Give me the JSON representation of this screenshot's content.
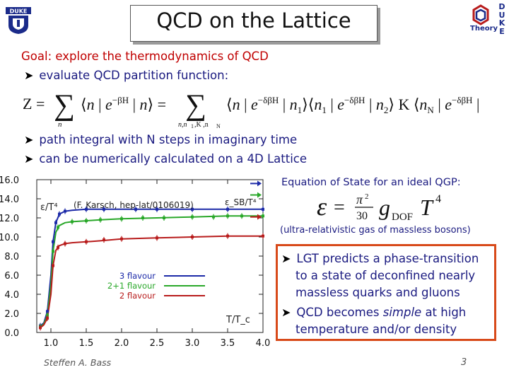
{
  "slide": {
    "title": "QCD on the Lattice",
    "goal": "Goal: explore the thermodynamics of QCD",
    "bullet1": "evaluate QCD partition function:",
    "bullet2": "path integral with N steps in imaginary time",
    "bullet3": "can be numerically calculated on a 4D Lattice",
    "eos_title": "Equation of State for an ideal QGP:",
    "eos_caption": "(ultra-relativistic gas of massless bosons)",
    "box_item1": "LGT predicts a phase-transition to a state of deconfined nearly massless quarks and gluons",
    "box_item2_pre": "QCD becomes ",
    "box_item2_em": "simple",
    "box_item2_post": " at high temperature and/or density",
    "footer_name": "Steffen A. Bass",
    "page_number": "3",
    "logo_text": "Theory",
    "logo_letters": [
      "D",
      "U",
      "K",
      "E"
    ],
    "university_logo": "DUKE"
  },
  "chart_data": {
    "type": "line",
    "annotation": "(F. Karsch, hep-lat/0106019)",
    "ylabel": "ε/T⁴",
    "sb_label": "ε_SB/T⁴",
    "xlabel": "T/T_c",
    "xlim": [
      0.8,
      4.0
    ],
    "ylim": [
      0.0,
      16.0
    ],
    "x_ticks": [
      "1.0",
      "1.5",
      "2.0",
      "2.5",
      "3.0",
      "3.5",
      "4.0"
    ],
    "y_ticks": [
      "0.0",
      "2.0",
      "4.0",
      "6.0",
      "8.0",
      "10.0",
      "12.0",
      "14.0",
      "16.0"
    ],
    "series": [
      {
        "name": "3 flavour",
        "color": "#1c2aa8",
        "sb": 15.6,
        "x": [
          0.85,
          0.9,
          0.95,
          1.0,
          1.03,
          1.07,
          1.12,
          1.2,
          1.3,
          1.5,
          1.7,
          2.0,
          2.5,
          3.0,
          3.5,
          4.0
        ],
        "y": [
          0.7,
          1.0,
          2.2,
          6.0,
          9.5,
          11.5,
          12.4,
          12.7,
          12.8,
          12.9,
          12.9,
          12.9,
          12.9,
          12.9,
          12.9,
          12.9
        ]
      },
      {
        "name": "2+1 flavour",
        "color": "#2aa82a",
        "sb": 14.4,
        "x": [
          0.85,
          0.9,
          0.95,
          1.0,
          1.03,
          1.07,
          1.12,
          1.2,
          1.3,
          1.5,
          1.7,
          2.0,
          2.5,
          3.0,
          3.5,
          4.0
        ],
        "y": [
          0.6,
          0.9,
          1.8,
          5.0,
          8.5,
          10.5,
          11.2,
          11.5,
          11.6,
          11.7,
          11.8,
          11.9,
          12.0,
          12.1,
          12.2,
          12.2
        ]
      },
      {
        "name": "2 flavour",
        "color": "#b81c1c",
        "sb": 12.1,
        "x": [
          0.85,
          0.9,
          0.95,
          1.0,
          1.03,
          1.07,
          1.12,
          1.2,
          1.3,
          1.5,
          1.7,
          2.0,
          2.5,
          3.0,
          3.5,
          4.0
        ],
        "y": [
          0.5,
          0.8,
          1.5,
          4.0,
          7.0,
          8.6,
          9.1,
          9.3,
          9.4,
          9.5,
          9.6,
          9.8,
          9.9,
          10.0,
          10.1,
          10.1
        ]
      }
    ],
    "markers": [
      {
        "series": 0,
        "x": [
          0.85,
          0.95,
          1.03,
          1.07,
          1.12,
          1.2,
          1.5,
          1.75,
          2.2,
          2.5,
          3.0,
          3.5,
          4.0
        ],
        "y": [
          0.7,
          2.2,
          9.5,
          11.5,
          12.4,
          12.7,
          12.9,
          12.9,
          12.9,
          12.9,
          12.9,
          12.9,
          12.9
        ]
      },
      {
        "series": 1,
        "x": [
          0.85,
          0.95,
          1.03,
          1.1,
          1.3,
          1.5,
          1.7,
          2.0,
          2.3,
          2.6,
          3.0,
          3.3,
          3.5,
          3.7,
          4.0
        ],
        "y": [
          0.6,
          1.8,
          8.5,
          11.0,
          11.6,
          11.7,
          11.8,
          11.9,
          12.0,
          12.0,
          12.1,
          12.1,
          12.2,
          12.2,
          12.2
        ]
      },
      {
        "series": 2,
        "x": [
          0.85,
          0.95,
          1.03,
          1.1,
          1.2,
          1.5,
          1.75,
          2.0,
          2.5,
          3.0,
          3.5,
          4.0
        ],
        "y": [
          0.5,
          1.5,
          7.0,
          8.9,
          9.3,
          9.5,
          9.7,
          9.8,
          9.9,
          10.0,
          10.1,
          10.1
        ]
      }
    ]
  }
}
